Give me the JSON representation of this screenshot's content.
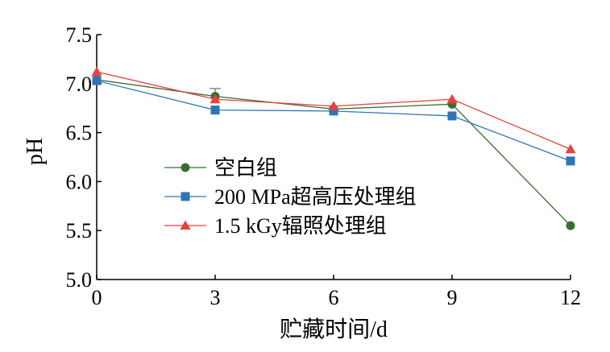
{
  "chart_data": {
    "type": "line",
    "title": "",
    "xlabel": "贮藏时间/d",
    "ylabel": "pH",
    "x": [
      0,
      3,
      6,
      9,
      12
    ],
    "xticks": [
      "0",
      "3",
      "6",
      "9",
      "12"
    ],
    "yticks": [
      "5.0",
      "5.5",
      "6.0",
      "6.5",
      "7.0",
      "7.5"
    ],
    "xlim": [
      0,
      12
    ],
    "ylim": [
      5.0,
      7.5
    ],
    "grid": false,
    "legend_position": "center-left",
    "series": [
      {
        "name": "空白组",
        "values": [
          7.04,
          6.87,
          6.74,
          6.79,
          5.55
        ],
        "color": "#3a6e35",
        "marker": "circle"
      },
      {
        "name": "200 MPa超高压处理组",
        "values": [
          7.03,
          6.73,
          6.72,
          6.67,
          6.21
        ],
        "color": "#2e75b6",
        "marker": "square"
      },
      {
        "name": "1.5 kGy辐照处理组",
        "values": [
          7.12,
          6.84,
          6.77,
          6.84,
          6.33
        ],
        "color": "#e8423b",
        "marker": "triangle"
      }
    ]
  }
}
